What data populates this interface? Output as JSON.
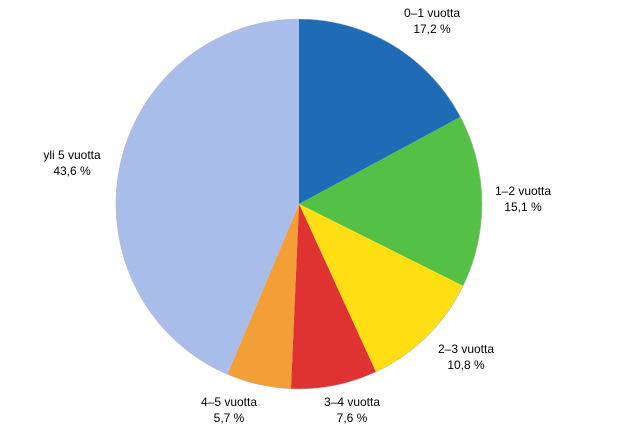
{
  "chart_data": {
    "type": "pie",
    "title": "",
    "slices": [
      {
        "label": "0–1 vuotta",
        "value_label": "17,2 %",
        "value": 17.2,
        "color": "#1f6bb5"
      },
      {
        "label": "1–2 vuotta",
        "value_label": "15,1 %",
        "value": 15.1,
        "color": "#55c046"
      },
      {
        "label": "2–3 vuotta",
        "value_label": "10,8 %",
        "value": 10.8,
        "color": "#ffdf13"
      },
      {
        "label": "3–4 vuotta",
        "value_label": "7,6 %",
        "value": 7.6,
        "color": "#df3232"
      },
      {
        "label": "4–5 vuotta",
        "value_label": "5,7 %",
        "value": 5.7,
        "color": "#f49e37"
      },
      {
        "label": "yli 5 vuotta",
        "value_label": "43,6 %",
        "value": 43.6,
        "color": "#a8bdea"
      }
    ],
    "start_angle": "12 o'clock",
    "direction": "clockwise",
    "legend": "none"
  }
}
